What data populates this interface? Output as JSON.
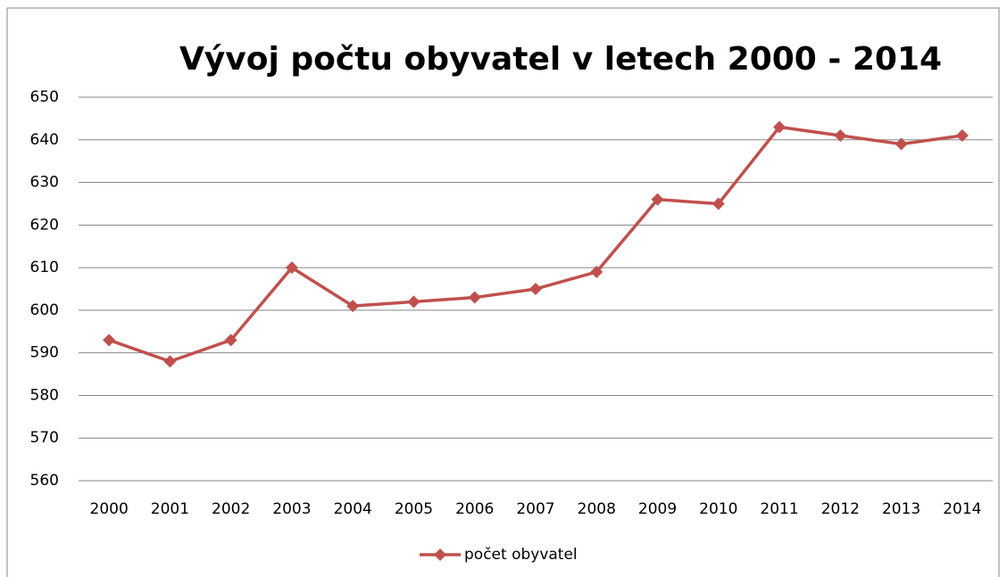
{
  "chart_data": {
    "type": "line",
    "title": "Vývoj počtu obyvatel v letech 2000 - 2014",
    "categories": [
      "2000",
      "2001",
      "2002",
      "2003",
      "2004",
      "2005",
      "2006",
      "2007",
      "2008",
      "2009",
      "2010",
      "2011",
      "2012",
      "2013",
      "2014"
    ],
    "series": [
      {
        "name": "počet obyvatel",
        "color": "#c0504d",
        "values": [
          593,
          588,
          593,
          610,
          601,
          602,
          603,
          605,
          609,
          626,
          625,
          643,
          641,
          639,
          641
        ]
      }
    ],
    "ylim": [
      560,
      650
    ],
    "yticks": [
      560,
      570,
      580,
      590,
      600,
      610,
      620,
      630,
      640,
      650
    ],
    "grid": true,
    "legend": "bottom"
  }
}
